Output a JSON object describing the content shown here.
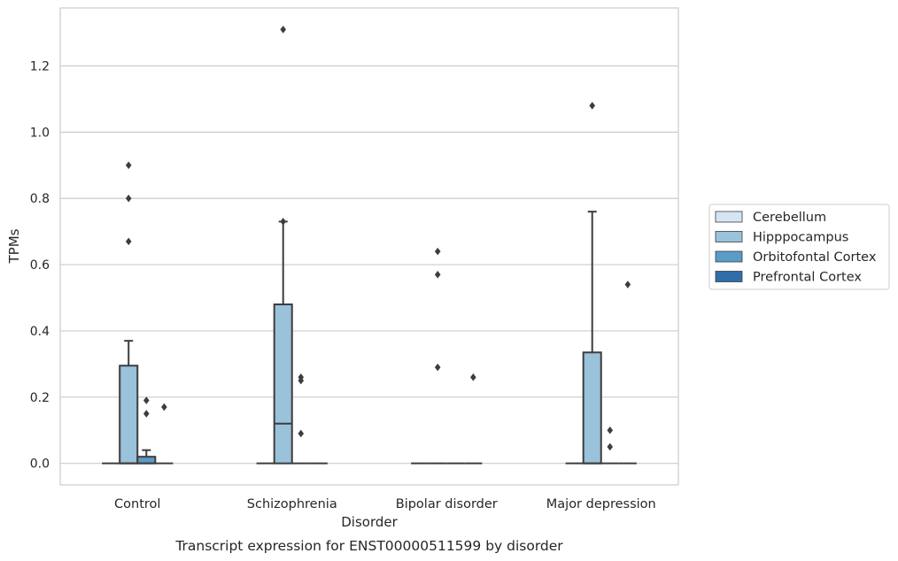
{
  "chart_data": {
    "type": "box",
    "title": "",
    "caption": "Transcript expression for ENST00000511599 by disorder",
    "xlabel": "Disorder",
    "ylabel": "TPMs",
    "ylim": [
      -0.065,
      1.375
    ],
    "yticks": [
      "0.0",
      "0.2",
      "0.4",
      "0.6",
      "0.8",
      "1.0",
      "1.2"
    ],
    "grid": true,
    "legend_position": "right",
    "categories": [
      "Control",
      "Schizophrenia",
      "Bipolar disorder",
      "Major depression"
    ],
    "series": [
      {
        "name": "Cerebellum",
        "color": "#d6e5f3",
        "boxes": [
          {
            "q1": 0,
            "median": 0,
            "q3": 0,
            "whislo": 0,
            "whishi": 0,
            "fliers": []
          },
          {
            "q1": 0,
            "median": 0,
            "q3": 0,
            "whislo": 0,
            "whishi": 0,
            "fliers": []
          },
          {
            "q1": 0,
            "median": 0,
            "q3": 0,
            "whislo": 0,
            "whishi": 0,
            "fliers": []
          },
          {
            "q1": 0,
            "median": 0,
            "q3": 0,
            "whislo": 0,
            "whishi": 0,
            "fliers": []
          }
        ]
      },
      {
        "name": "Hipppocampus",
        "color": "#9ac2da",
        "boxes": [
          {
            "q1": 0,
            "median": 0,
            "q3": 0.295,
            "whislo": 0,
            "whishi": 0.37,
            "fliers": [
              0.9,
              0.8,
              0.67
            ]
          },
          {
            "q1": 0,
            "median": 0.12,
            "q3": 0.48,
            "whislo": 0,
            "whishi": 0.73,
            "fliers": [
              1.31,
              0.73
            ]
          },
          {
            "q1": 0,
            "median": 0,
            "q3": 0,
            "whislo": 0,
            "whishi": 0,
            "fliers": [
              0.64,
              0.57,
              0.29
            ]
          },
          {
            "q1": 0,
            "median": 0,
            "q3": 0.335,
            "whislo": 0,
            "whishi": 0.76,
            "fliers": [
              1.08
            ]
          }
        ]
      },
      {
        "name": "Orbitofontal Cortex",
        "color": "#5b9bc8",
        "boxes": [
          {
            "q1": 0,
            "median": 0,
            "q3": 0.02,
            "whislo": 0,
            "whishi": 0.04,
            "fliers": [
              0.19,
              0.15
            ]
          },
          {
            "q1": 0,
            "median": 0,
            "q3": 0,
            "whislo": 0,
            "whishi": 0,
            "fliers": [
              0.26,
              0.25,
              0.09
            ]
          },
          {
            "q1": 0,
            "median": 0,
            "q3": 0,
            "whislo": 0,
            "whishi": 0,
            "fliers": []
          },
          {
            "q1": 0,
            "median": 0,
            "q3": 0,
            "whislo": 0,
            "whishi": 0,
            "fliers": [
              0.1,
              0.05
            ]
          }
        ]
      },
      {
        "name": "Prefrontal Cortex",
        "color": "#2f6ea8",
        "boxes": [
          {
            "q1": 0,
            "median": 0,
            "q3": 0,
            "whislo": 0,
            "whishi": 0,
            "fliers": [
              0.17
            ]
          },
          {
            "q1": 0,
            "median": 0,
            "q3": 0,
            "whislo": 0,
            "whishi": 0,
            "fliers": []
          },
          {
            "q1": 0,
            "median": 0,
            "q3": 0,
            "whislo": 0,
            "whishi": 0,
            "fliers": [
              0.26
            ]
          },
          {
            "q1": 0,
            "median": 0,
            "q3": 0,
            "whislo": 0,
            "whishi": 0,
            "fliers": [
              0.54
            ]
          }
        ]
      }
    ]
  }
}
